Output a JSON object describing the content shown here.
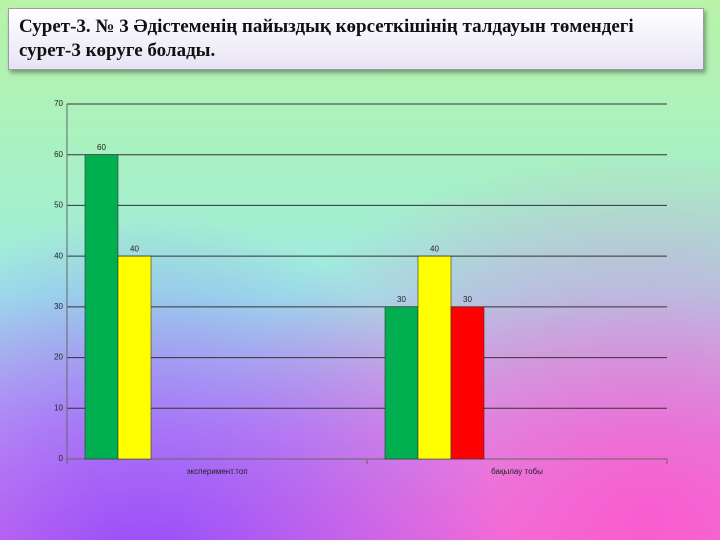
{
  "header": {
    "title": "Сурет-3. № 3 Әдістеменің пайыздық көрсеткішінің талдауын төмендегі сурет-3 көруге болады."
  },
  "chart_data": {
    "type": "bar",
    "categories": [
      "эксперимент.топ",
      "бақылау тобы"
    ],
    "series": [
      {
        "color": "#00b050",
        "values": [
          60,
          30
        ]
      },
      {
        "color": "#ffff00",
        "values": [
          40,
          40
        ]
      },
      {
        "color": "#ff0000",
        "values": [
          null,
          30
        ]
      }
    ],
    "ylim": [
      0,
      70
    ],
    "yticks": [
      0,
      10,
      20,
      30,
      40,
      50,
      60,
      70
    ],
    "grid": true
  }
}
